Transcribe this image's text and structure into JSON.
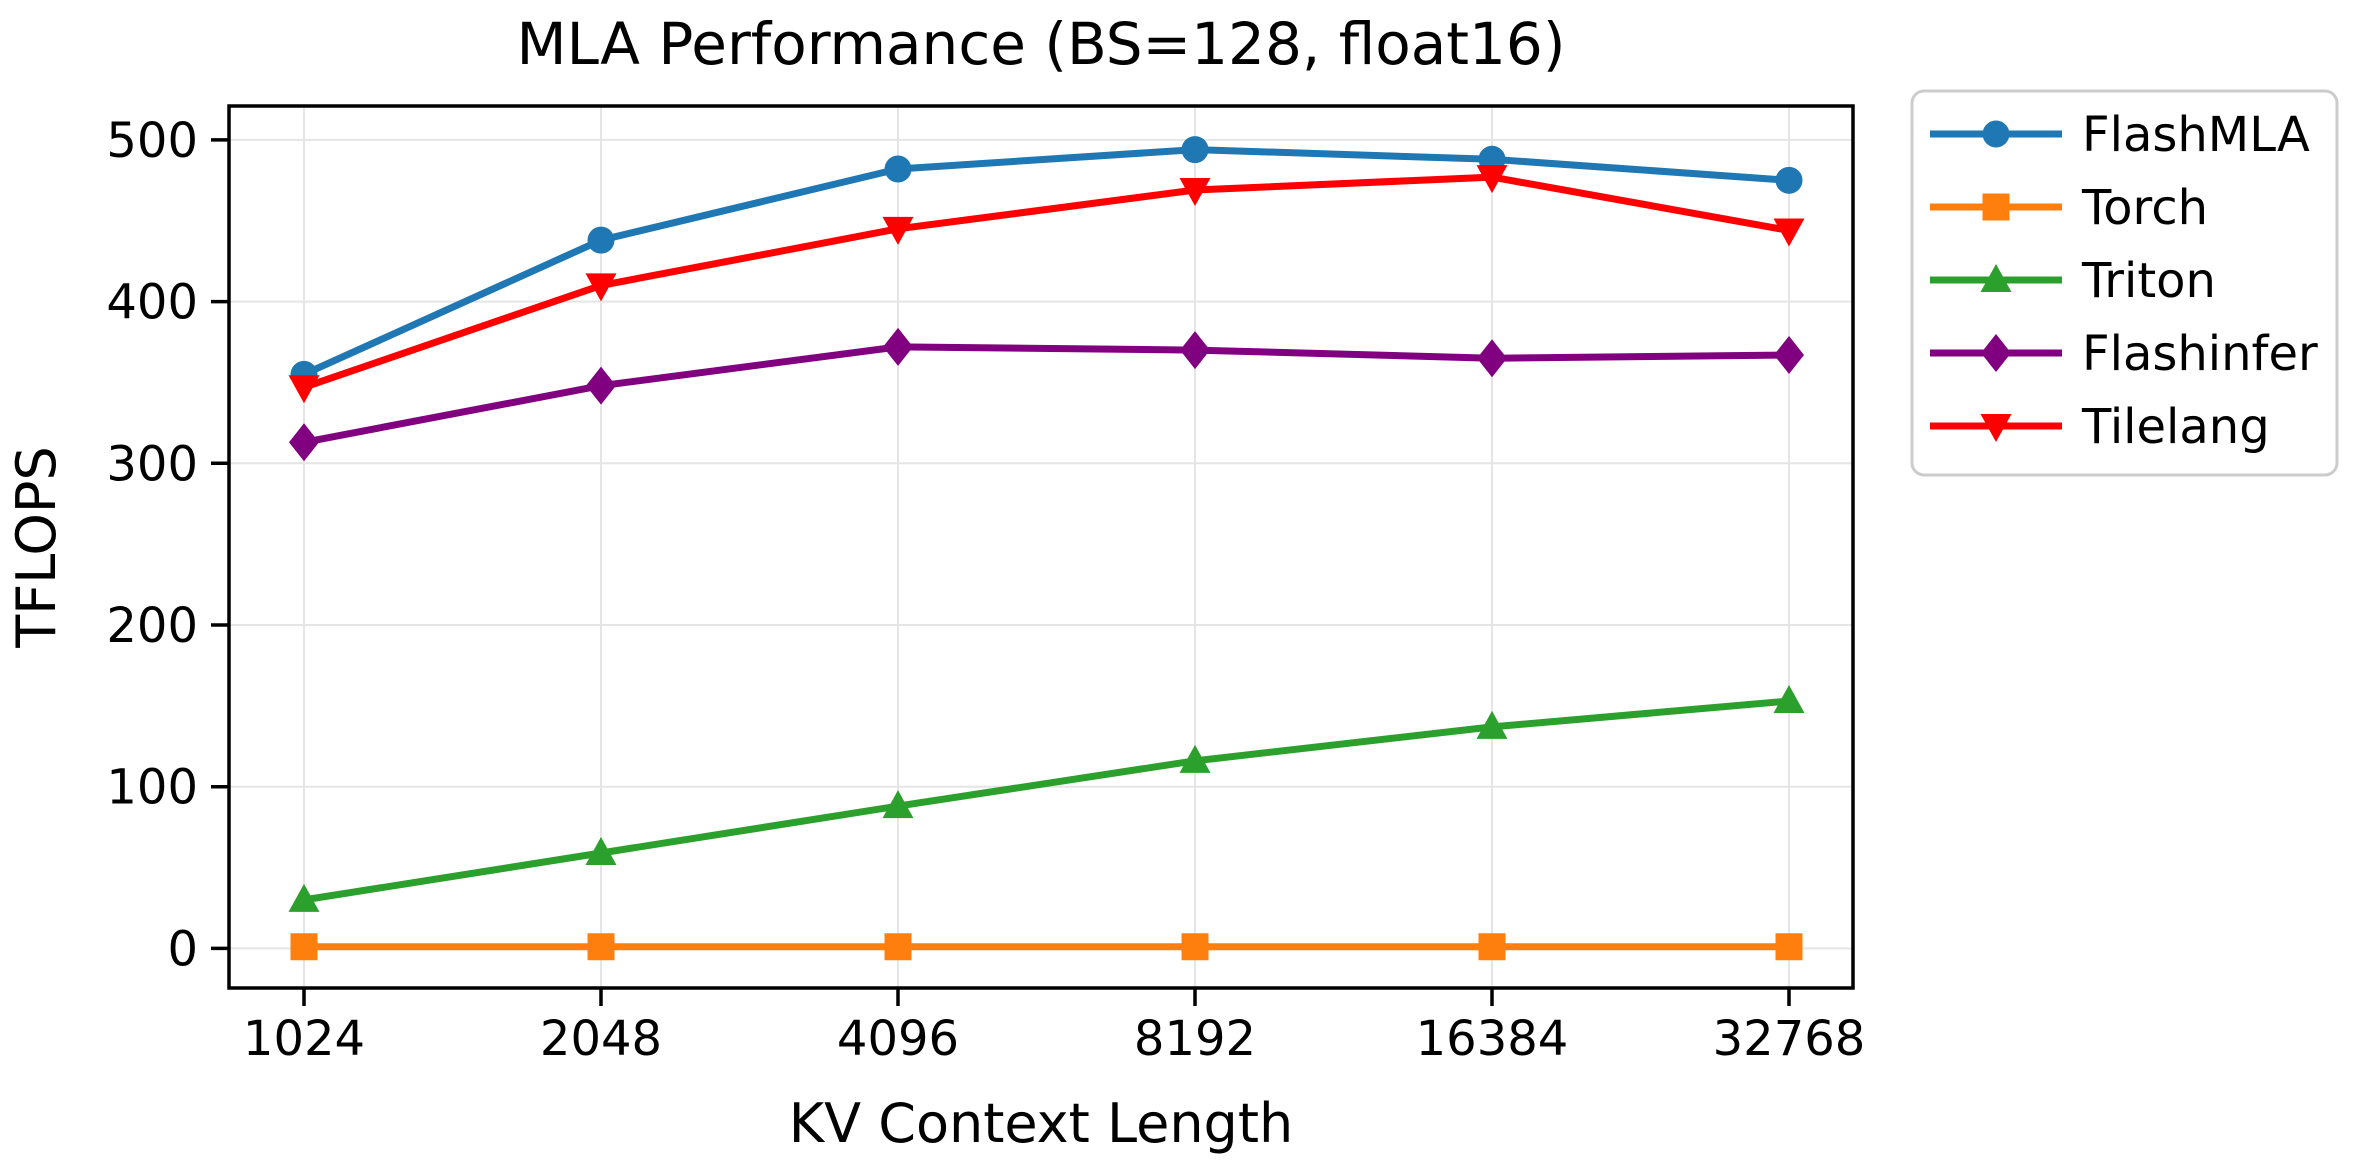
{
  "chart_data": {
    "type": "line",
    "title": "MLA Performance (BS=128, float16)",
    "xlabel": "KV Context Length",
    "ylabel": "TFLOPS",
    "categories": [
      "1024",
      "2048",
      "4096",
      "8192",
      "16384",
      "32768"
    ],
    "yticks": [
      0,
      100,
      200,
      300,
      400,
      500
    ],
    "ylim": [
      -25,
      520
    ],
    "grid": true,
    "grid_color": "#e5e5e5",
    "background": "#ffffff",
    "legend_position": "outside-right",
    "series": [
      {
        "name": "FlashMLA",
        "color": "#1f77b4",
        "marker": "circle",
        "values": [
          355,
          438,
          482,
          494,
          488,
          475
        ]
      },
      {
        "name": "Torch",
        "color": "#ff7f0e",
        "marker": "square",
        "values": [
          1,
          1,
          1,
          1,
          1,
          1
        ]
      },
      {
        "name": "Triton",
        "color": "#2ca02c",
        "marker": "triangle-up",
        "values": [
          30,
          59,
          88,
          116,
          137,
          153
        ]
      },
      {
        "name": "Flashinfer",
        "color": "#800080",
        "marker": "diamond",
        "values": [
          313,
          348,
          372,
          370,
          365,
          367
        ]
      },
      {
        "name": "Tilelang",
        "color": "#ff0000",
        "marker": "triangle-down",
        "values": [
          347,
          410,
          445,
          469,
          477,
          444
        ]
      }
    ]
  }
}
